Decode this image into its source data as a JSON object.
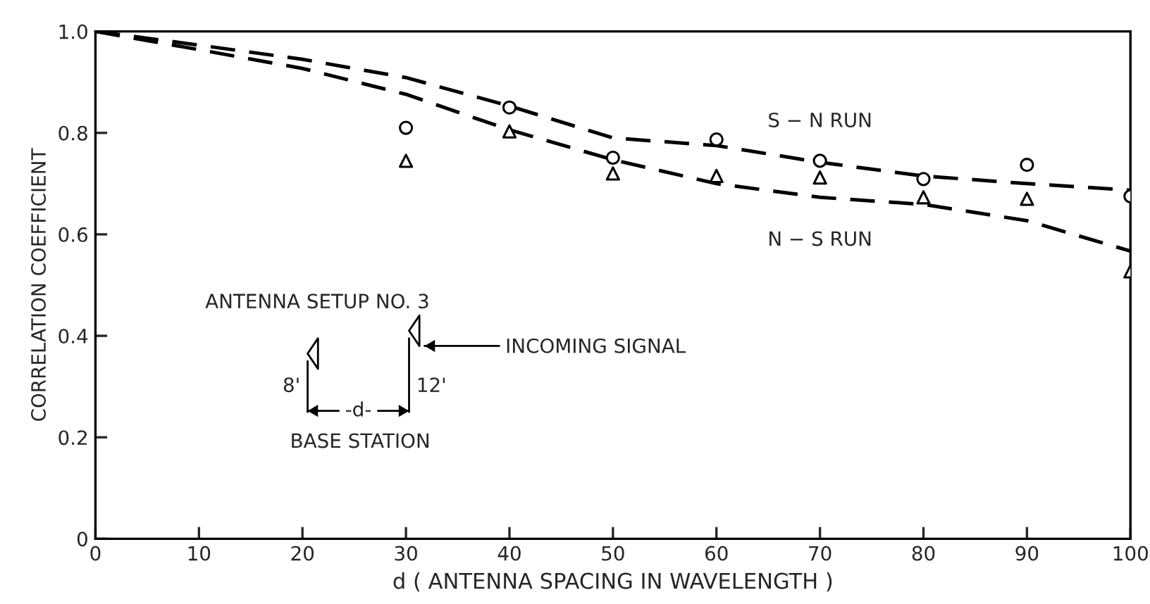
{
  "chart_data": {
    "type": "scatter",
    "xlabel": "d ( ANTENNA SPACING IN WAVELENGTH )",
    "ylabel": "CORRELATION COEFFICIENT",
    "xlim": [
      0,
      100
    ],
    "ylim": [
      0,
      1.0
    ],
    "xticks": [
      0,
      10,
      20,
      30,
      40,
      50,
      60,
      70,
      80,
      90,
      100
    ],
    "yticks": [
      0,
      {
        "value": 0.2,
        "label": "0.2"
      },
      {
        "value": 0.4,
        "label": "0.4"
      },
      {
        "value": 0.6,
        "label": "0.6"
      },
      {
        "value": 0.8,
        "label": "0.8"
      },
      {
        "value": 1.0,
        "label": "1.0"
      }
    ],
    "grid": false,
    "legend": false,
    "series": [
      {
        "type": "line",
        "line_style": "dashed",
        "marker": "none",
        "color": "#000000",
        "x": [
          0,
          10,
          20,
          30,
          40,
          50,
          60,
          70,
          80,
          90,
          100
        ],
        "values": [
          1.0,
          0.973,
          0.945,
          0.909,
          0.853,
          0.79,
          0.775,
          0.742,
          0.715,
          0.7,
          0.687
        ]
      },
      {
        "type": "line",
        "line_style": "dashed",
        "marker": "none",
        "color": "#000000",
        "x": [
          0,
          10,
          20,
          30,
          40,
          50,
          60,
          70,
          80,
          90,
          100
        ],
        "values": [
          1.0,
          0.964,
          0.927,
          0.876,
          0.806,
          0.747,
          0.7,
          0.673,
          0.659,
          0.627,
          0.567
        ]
      },
      {
        "marker": "circle",
        "color": "#000000",
        "x": [
          30,
          40,
          50,
          60,
          70,
          80,
          90,
          100
        ],
        "values": [
          0.81,
          0.85,
          0.751,
          0.787,
          0.745,
          0.709,
          0.737,
          0.675
        ]
      },
      {
        "marker": "triangle",
        "color": "#000000",
        "x": [
          30,
          40,
          50,
          60,
          70,
          80,
          90,
          100
        ],
        "values": [
          0.745,
          0.803,
          0.72,
          0.715,
          0.712,
          0.673,
          0.67,
          0.527
        ]
      }
    ],
    "annotations": [
      {
        "text": "S − N RUN",
        "x": 70,
        "y": 0.745
      },
      {
        "text": "N − S RUN",
        "x": 70,
        "y": 0.673
      },
      "ANTENNA SETUP NO. 3",
      "INCOMING SIGNAL",
      "8'",
      "12'",
      "-d-",
      "BASE STATION"
    ]
  }
}
